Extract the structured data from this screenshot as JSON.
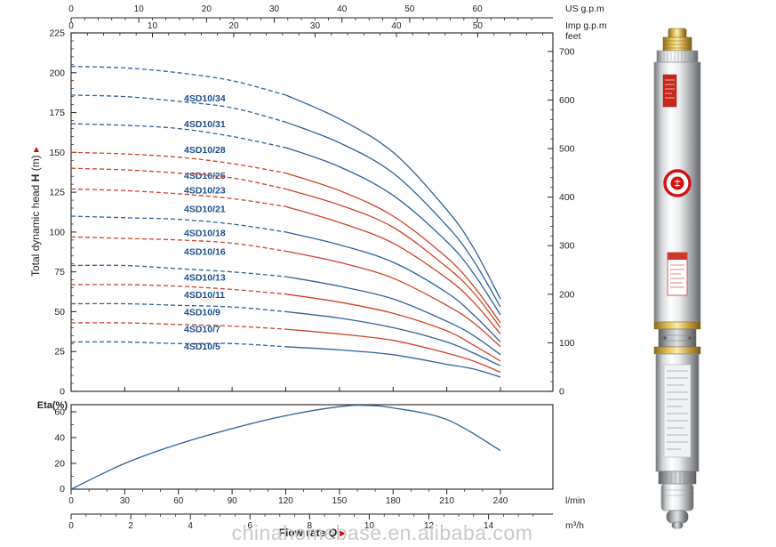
{
  "watermark": "chinahomebase.en.alibaba.com",
  "colors": {
    "curve_blue": "#2b6298",
    "curve_red": "#cc4328",
    "label_navy": "#1c4f8a",
    "accent_red": "#e10000",
    "axis": "#222222"
  },
  "chart_data": [
    {
      "type": "line",
      "id": "head-flow-curves",
      "ylabel_parts": [
        "Total dynamic head ",
        "H",
        " (m)"
      ],
      "xlabel_parts": [
        "Flow rate ",
        "Q"
      ],
      "axes": {
        "us_gpm": {
          "label": "US g.p.m",
          "ticks": [
            0,
            10,
            20,
            30,
            40,
            50,
            60
          ]
        },
        "imp_gpm": {
          "label": "Imp g.p.m",
          "ticks": [
            0,
            10,
            20,
            30,
            40,
            50
          ]
        },
        "meters": {
          "ticks": [
            0,
            25,
            50,
            75,
            100,
            125,
            150,
            175,
            200,
            225
          ],
          "range": [
            0,
            225
          ]
        },
        "feet": {
          "label": "feet",
          "ticks": [
            0,
            100,
            200,
            300,
            400,
            500,
            600,
            700
          ]
        },
        "l_min": {
          "label": "l/min",
          "ticks": [
            0,
            30,
            60,
            90,
            120,
            150,
            180,
            210,
            240
          ]
        },
        "m3_h": {
          "label": "m³/h",
          "ticks": [
            0,
            2,
            4,
            6,
            8,
            10,
            12,
            14
          ]
        }
      },
      "x_lmin": [
        0,
        30,
        60,
        90,
        120,
        150,
        180,
        210,
        225,
        240
      ],
      "series": [
        {
          "name": "4SD10/34",
          "color": "blue",
          "head_m": [
            204,
            203,
            200,
            195,
            186,
            171,
            150,
            114,
            90,
            58
          ]
        },
        {
          "name": "4SD10/31",
          "color": "blue",
          "head_m": [
            186,
            185,
            182,
            178,
            169,
            156,
            137,
            104,
            82,
            53
          ]
        },
        {
          "name": "4SD10/28",
          "color": "blue",
          "head_m": [
            168,
            167,
            165,
            160,
            153,
            141,
            123,
            94,
            74,
            48
          ]
        },
        {
          "name": "4SD10/25",
          "color": "red",
          "head_m": [
            150,
            149,
            147,
            143,
            137,
            126,
            110,
            84,
            66,
            43
          ]
        },
        {
          "name": "4SD10/23",
          "color": "red",
          "head_m": [
            140,
            139,
            137,
            134,
            127,
            117,
            103,
            78,
            62,
            40
          ]
        },
        {
          "name": "4SD10/21",
          "color": "red",
          "head_m": [
            127,
            126,
            124,
            121,
            116,
            106,
            93,
            71,
            56,
            36
          ]
        },
        {
          "name": "4SD10/18",
          "color": "blue",
          "head_m": [
            110,
            109,
            108,
            105,
            100,
            92,
            81,
            62,
            48,
            31
          ]
        },
        {
          "name": "4SD10/16",
          "color": "red",
          "head_m": [
            97,
            96,
            95,
            93,
            88,
            81,
            71,
            54,
            43,
            28
          ]
        },
        {
          "name": "4SD10/13",
          "color": "blue",
          "head_m": [
            79,
            79,
            77,
            75,
            72,
            66,
            58,
            44,
            35,
            23
          ]
        },
        {
          "name": "4SD10/11",
          "color": "red",
          "head_m": [
            67,
            67,
            66,
            64,
            61,
            56,
            49,
            38,
            29,
            19
          ]
        },
        {
          "name": "4SD10/9",
          "color": "blue",
          "head_m": [
            55,
            55,
            54,
            53,
            50,
            46,
            40,
            31,
            24,
            16
          ]
        },
        {
          "name": "4SD10/7",
          "color": "red",
          "head_m": [
            43,
            43,
            42,
            41,
            39,
            36,
            32,
            24,
            19,
            12
          ]
        },
        {
          "name": "4SD10/5",
          "color": "blue",
          "head_m": [
            31,
            31,
            30,
            30,
            28,
            26,
            23,
            17,
            14,
            9
          ]
        }
      ]
    },
    {
      "type": "line",
      "id": "efficiency-curve",
      "ylabel": "Eta(%)",
      "y_ticks": [
        0,
        20,
        40,
        60
      ],
      "x_lmin": [
        0,
        30,
        60,
        90,
        120,
        150,
        165,
        180,
        210,
        240
      ],
      "eta_percent": [
        0,
        20,
        35,
        47,
        57,
        64,
        65,
        63,
        54,
        30
      ]
    }
  ]
}
